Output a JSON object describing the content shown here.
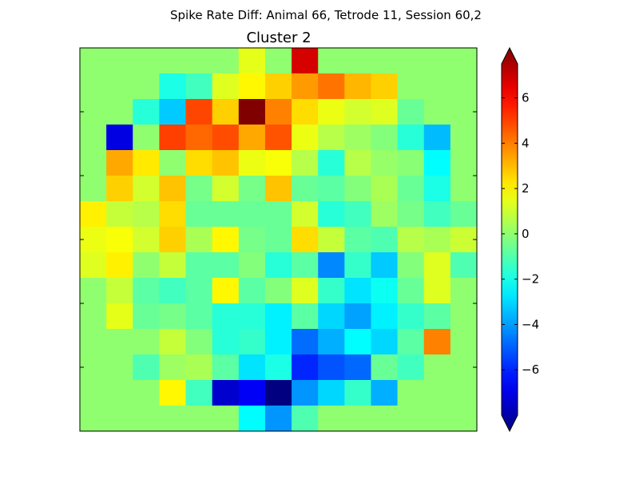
{
  "figure": {
    "suptitle": "Spike Rate Diff: Animal 66, Tetrode 11, Session 60,2"
  },
  "chart_data": {
    "type": "heatmap",
    "title": "Cluster 2",
    "xlabel": "",
    "ylabel": "",
    "grid": false,
    "colormap": "jet",
    "colorbar": {
      "vmin": -8,
      "vmax": 7.5,
      "extend": "both",
      "ticks": [
        6,
        4,
        2,
        0,
        -2,
        -4,
        -6
      ],
      "tick_labels": [
        "6",
        "4",
        "2",
        "0",
        "−2",
        "−4",
        "−6"
      ]
    },
    "rows": 15,
    "cols": 15,
    "values": [
      [
        0,
        0,
        0,
        0,
        0,
        0,
        1.3,
        0,
        6.2,
        0,
        0,
        0,
        0,
        0,
        0
      ],
      [
        0,
        0,
        0,
        -1.8,
        -1.2,
        1.2,
        1.8,
        2.4,
        3.2,
        3.8,
        2.8,
        2.4,
        0,
        0,
        0
      ],
      [
        0,
        0,
        -1.6,
        -3,
        4.5,
        2.4,
        7.5,
        3.6,
        2.2,
        1.4,
        1.0,
        1.2,
        -0.6,
        0,
        0
      ],
      [
        0,
        -6.5,
        0,
        4.6,
        4.0,
        4.4,
        3.0,
        4.3,
        1.4,
        0.6,
        0.2,
        -0.2,
        -1.6,
        -3.2,
        0
      ],
      [
        0,
        3.0,
        2.0,
        0,
        2.2,
        2.6,
        1.4,
        1.6,
        0.6,
        -1.6,
        0.6,
        0.1,
        -0.1,
        -2.2,
        0
      ],
      [
        0,
        2.4,
        1.0,
        2.6,
        -0.4,
        1.0,
        -0.4,
        2.6,
        -0.6,
        -0.8,
        -0.2,
        0.4,
        -0.6,
        -1.8,
        0
      ],
      [
        1.9,
        0.8,
        0.6,
        2.2,
        -0.6,
        -0.6,
        -0.6,
        -0.6,
        1.0,
        -1.6,
        -1.2,
        0.2,
        -0.4,
        -1.2,
        -0.6
      ],
      [
        1.4,
        1.6,
        1.0,
        2.4,
        0.4,
        1.8,
        -0.4,
        -0.6,
        2.2,
        0.8,
        -0.8,
        -1.0,
        0.6,
        0.4,
        0.9
      ],
      [
        1.2,
        1.9,
        0,
        0.8,
        -0.8,
        -0.8,
        -0.2,
        -1.6,
        -0.8,
        -4.0,
        -1.4,
        -3.0,
        -0.2,
        1.2,
        -1.0
      ],
      [
        0,
        0.8,
        -0.8,
        -1.2,
        -0.8,
        1.8,
        -0.8,
        -0.2,
        1.2,
        -1.4,
        -2.6,
        -2.0,
        -0.6,
        1.2,
        0
      ],
      [
        0,
        1.3,
        -0.6,
        -0.4,
        -0.8,
        -1.6,
        -1.6,
        -2.4,
        -0.8,
        -2.8,
        -3.6,
        -2.4,
        -1.4,
        -0.8,
        0
      ],
      [
        0,
        0,
        0,
        0.8,
        -0.2,
        -1.6,
        -1.4,
        -2.4,
        -4.4,
        -3.4,
        -2.2,
        -2.8,
        -0.8,
        3.6,
        0
      ],
      [
        0,
        0,
        -1.0,
        0.2,
        0.4,
        -0.8,
        -2.6,
        -1.8,
        -5.5,
        -4.8,
        -4.5,
        -0.6,
        -1.2,
        0,
        0
      ],
      [
        0,
        0,
        0,
        1.8,
        -1.2,
        -6.8,
        -6.2,
        -8.0,
        -3.8,
        -2.8,
        -1.4,
        -3.4,
        0,
        0,
        0
      ],
      [
        0,
        0,
        0,
        0,
        0,
        0,
        -2.2,
        -3.8,
        -1.0,
        0,
        0,
        0,
        0,
        0,
        0
      ]
    ]
  }
}
